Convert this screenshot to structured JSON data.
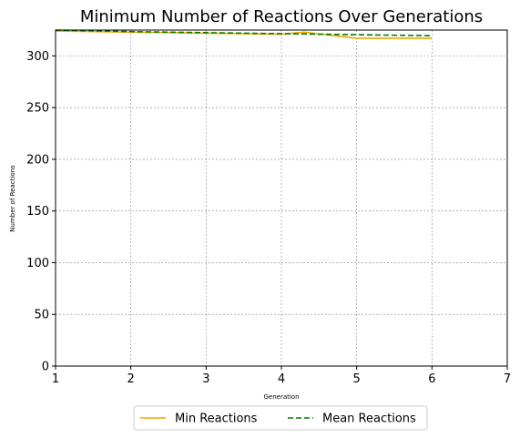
{
  "chart_data": {
    "type": "line",
    "title": "Minimum Number of Reactions Over Generations",
    "xlabel": "Generation",
    "ylabel": "Number of Reactions",
    "xlim": [
      1,
      7
    ],
    "ylim": [
      0,
      325
    ],
    "xticks": [
      1,
      2,
      3,
      4,
      5,
      6,
      7
    ],
    "yticks": [
      0,
      50,
      100,
      150,
      200,
      250,
      300
    ],
    "grid": true,
    "legend_position": "bottom-center",
    "series": [
      {
        "name": "Min Reactions",
        "color": "#f2a900",
        "style": "solid",
        "x": [
          1,
          2,
          3,
          4,
          4.3,
          5,
          6
        ],
        "y": [
          324,
          323,
          322,
          321,
          323,
          317,
          317
        ]
      },
      {
        "name": "Mean Reactions",
        "color": "#007a00",
        "style": "dashed",
        "x": [
          1,
          2,
          3,
          4,
          5,
          6
        ],
        "y": [
          325,
          323.5,
          322.5,
          321.5,
          320.5,
          319.5
        ]
      }
    ]
  }
}
